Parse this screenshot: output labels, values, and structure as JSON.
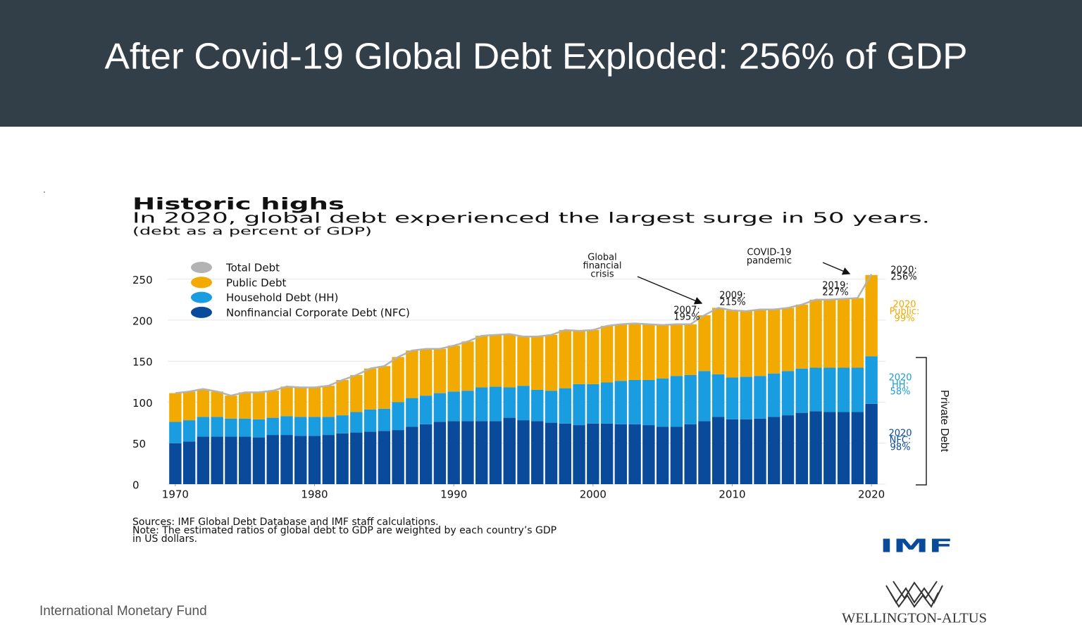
{
  "slide": {
    "title": "After Covid-19 Global Debt Exploded: 256% of GDP",
    "footer": "International Monetary Fund",
    "brand": "WELLINGTON-ALTUS"
  },
  "chart_data": {
    "type": "bar",
    "stacked": true,
    "title": "Historic highs",
    "subtitle": "In 2020, global debt experienced the largest surge in 50 years.",
    "note": "(debt as a percent of GDP)",
    "x": [
      1970,
      1971,
      1972,
      1973,
      1974,
      1975,
      1976,
      1977,
      1978,
      1979,
      1980,
      1981,
      1982,
      1983,
      1984,
      1985,
      1986,
      1987,
      1988,
      1989,
      1990,
      1991,
      1992,
      1993,
      1994,
      1995,
      1996,
      1997,
      1998,
      1999,
      2000,
      2001,
      2002,
      2003,
      2004,
      2005,
      2006,
      2007,
      2008,
      2009,
      2010,
      2011,
      2012,
      2013,
      2014,
      2015,
      2016,
      2017,
      2018,
      2019,
      2020
    ],
    "xlim": [
      1969.5,
      2020.5
    ],
    "xticks": [
      1970,
      1980,
      1990,
      2000,
      2010,
      2020
    ],
    "ylim": [
      0,
      260
    ],
    "yticks": [
      0,
      50,
      100,
      150,
      200,
      250
    ],
    "grid": true,
    "series": [
      {
        "name": "Total Debt",
        "type": "line",
        "color": "#b3b3b3",
        "values": [
          111,
          113,
          116,
          113,
          108,
          112,
          112,
          114,
          119,
          118,
          118,
          120,
          127,
          133,
          141,
          144,
          155,
          163,
          165,
          165,
          169,
          174,
          181,
          182,
          183,
          180,
          180,
          182,
          188,
          187,
          188,
          193,
          195,
          196,
          195,
          194,
          195,
          195,
          206,
          215,
          212,
          211,
          213,
          213,
          215,
          219,
          225,
          225,
          226,
          227,
          256
        ]
      },
      {
        "name": "Public Debt",
        "color": "#f2aa00",
        "values": [
          35,
          35,
          34,
          31,
          28,
          32,
          33,
          33,
          36,
          36,
          36,
          38,
          43,
          45,
          50,
          52,
          55,
          58,
          57,
          54,
          56,
          60,
          63,
          63,
          65,
          60,
          65,
          68,
          71,
          65,
          66,
          69,
          69,
          69,
          68,
          65,
          63,
          62,
          68,
          81,
          82,
          80,
          81,
          78,
          77,
          78,
          83,
          83,
          84,
          85,
          99
        ]
      },
      {
        "name": "Household Debt (HH)",
        "color": "#1a9de0",
        "values": [
          26,
          26,
          24,
          24,
          22,
          22,
          22,
          21,
          23,
          23,
          23,
          22,
          22,
          25,
          27,
          27,
          34,
          35,
          35,
          35,
          36,
          37,
          41,
          42,
          37,
          42,
          38,
          39,
          43,
          50,
          48,
          50,
          53,
          54,
          55,
          59,
          62,
          60,
          61,
          52,
          51,
          52,
          52,
          53,
          54,
          54,
          53,
          54,
          54,
          54,
          58
        ]
      },
      {
        "name": "Nonfinancial Corporate Debt (NFC)",
        "color": "#0a4a9a",
        "values": [
          50,
          52,
          58,
          58,
          58,
          58,
          57,
          60,
          60,
          59,
          59,
          60,
          62,
          63,
          64,
          65,
          66,
          70,
          73,
          76,
          77,
          77,
          77,
          77,
          81,
          78,
          77,
          75,
          74,
          72,
          74,
          74,
          73,
          73,
          72,
          70,
          70,
          73,
          77,
          82,
          79,
          79,
          80,
          82,
          84,
          87,
          89,
          88,
          88,
          88,
          98
        ]
      }
    ],
    "annotations": [
      {
        "lines": [
          "Global",
          "financial",
          "crisis"
        ]
      },
      {
        "lines": [
          "COVID-19",
          "pandemic"
        ]
      },
      {
        "lines": [
          "2007:",
          "195%"
        ]
      },
      {
        "lines": [
          "2009:",
          "215%"
        ]
      },
      {
        "lines": [
          "2019:",
          "227%"
        ]
      },
      {
        "lines": [
          "2020:",
          "256%"
        ]
      },
      {
        "lines": [
          "2020",
          "Public:",
          "99%"
        ],
        "color": "#f2aa00"
      },
      {
        "lines": [
          "2020",
          "HH:",
          "58%"
        ],
        "color": "#1a9de0"
      },
      {
        "lines": [
          "2020",
          "NFC:",
          "98%"
        ],
        "color": "#0a4a9a"
      },
      {
        "lines": [
          "Private Debt"
        ]
      }
    ],
    "sources": [
      "Sources: IMF Global Debt Database and IMF staff calculations.",
      "Note: The estimated ratios of global debt to GDP are weighted by each country’s GDP",
      "in US dollars."
    ],
    "source_logo": "IMF"
  }
}
